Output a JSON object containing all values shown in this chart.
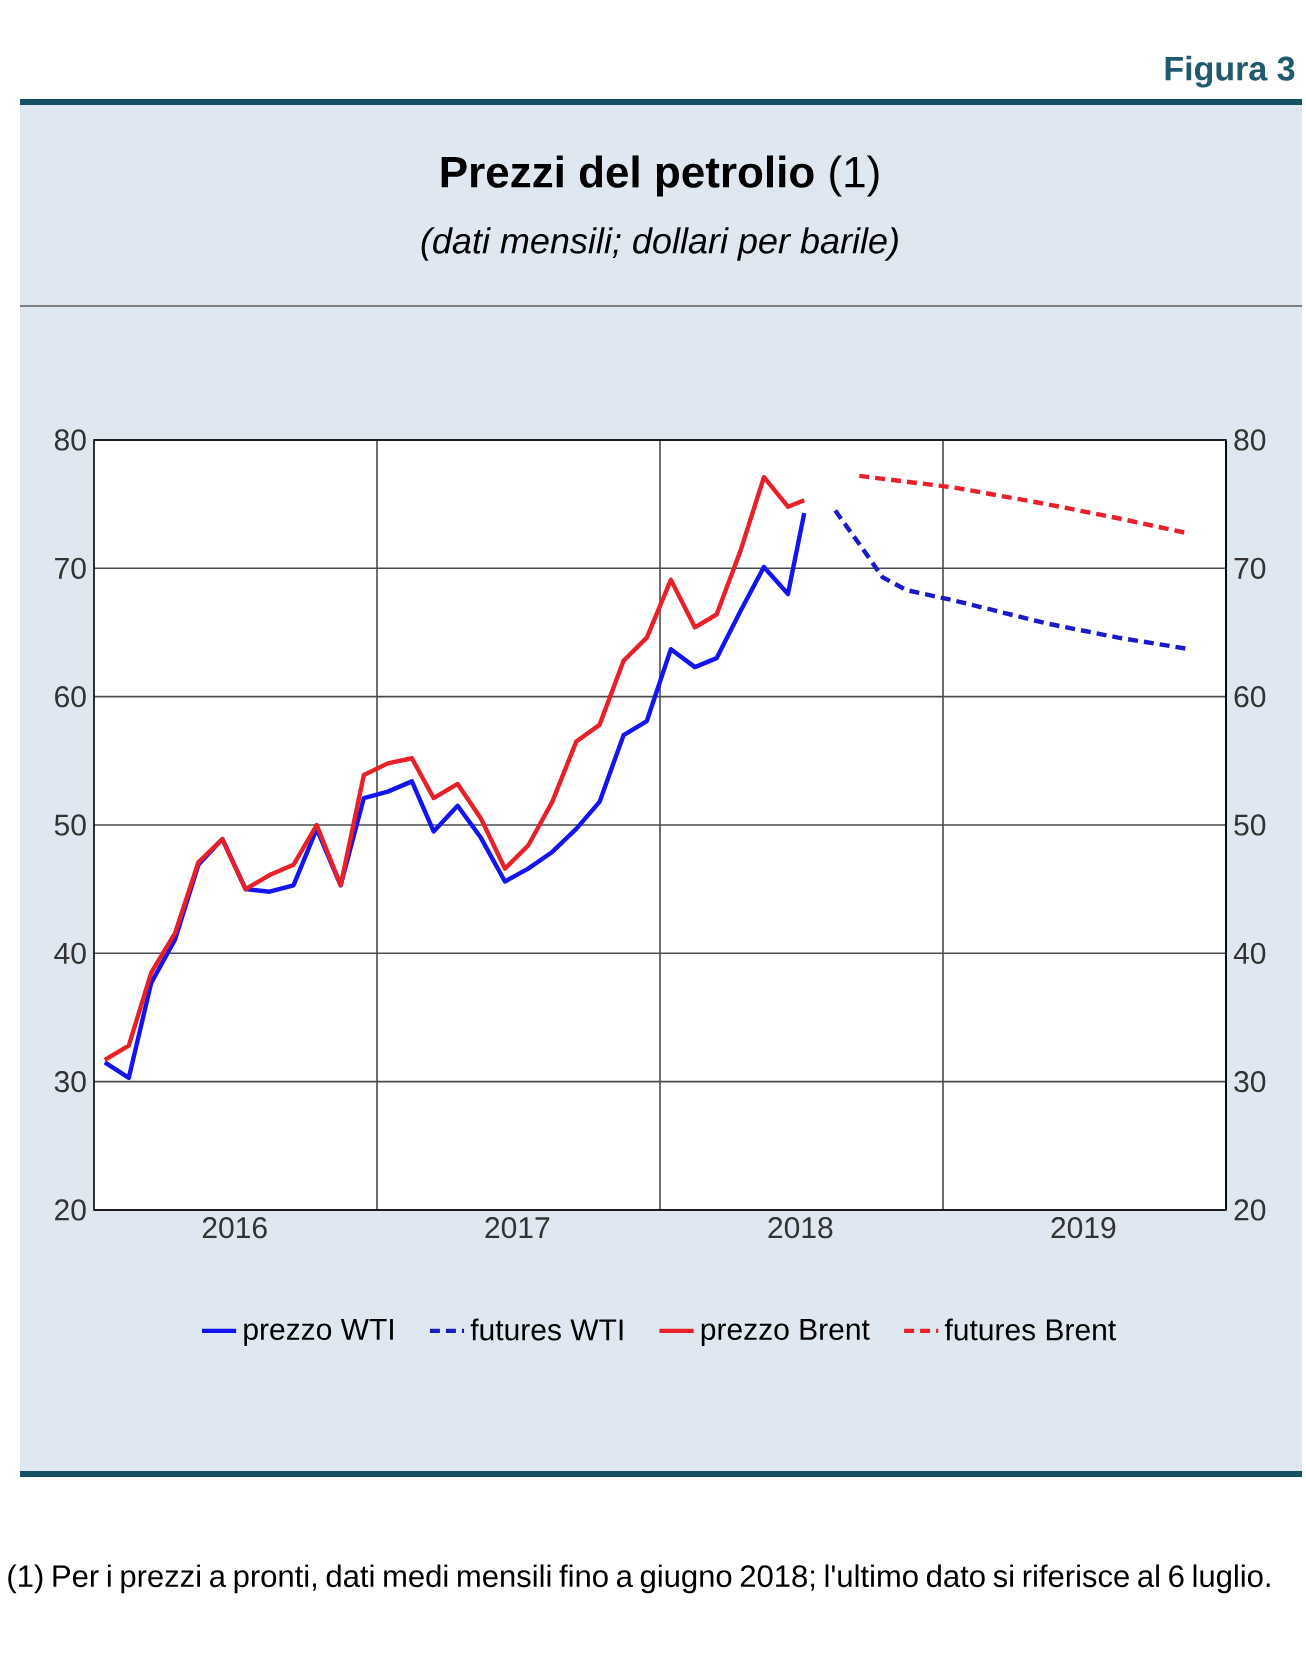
{
  "chart_data": {
    "type": "line",
    "title": "**Prezzi del petrolio** (1)",
    "subtitle": "(dati mensili; dollari per barile)",
    "annotations": [
      "Figura 3",
      "(1) Per i prezzi a pronti, dati medi mensili fino a giugno 2018; l'ultimo dato si riferisce al 6 luglio."
    ],
    "series": [
      {
        "name": "prezzo WTI",
        "color": "#1414f0",
        "line_style": "solid",
        "x": [
          "2016-01-15",
          "2016-02-15",
          "2016-03-15",
          "2016-04-15",
          "2016-05-15",
          "2016-06-15",
          "2016-07-15",
          "2016-08-15",
          "2016-09-15",
          "2016-10-15",
          "2016-11-15",
          "2016-12-15",
          "2017-01-15",
          "2017-02-15",
          "2017-03-15",
          "2017-04-15",
          "2017-05-15",
          "2017-06-15",
          "2017-07-15",
          "2017-08-15",
          "2017-09-15",
          "2017-10-15",
          "2017-11-15",
          "2017-12-15",
          "2018-01-15",
          "2018-02-15",
          "2018-03-15",
          "2018-04-15",
          "2018-05-15",
          "2018-06-15",
          "2018-07-06"
        ],
        "values": [
          31.5,
          30.3,
          37.7,
          41.1,
          46.9,
          48.9,
          45.0,
          44.8,
          45.3,
          49.7,
          45.3,
          52.1,
          52.6,
          53.4,
          49.5,
          51.5,
          49.0,
          45.6,
          46.6,
          47.9,
          49.7,
          51.8,
          57.0,
          58.1,
          63.7,
          62.3,
          63.0,
          66.7,
          70.1,
          68.0,
          74.3
        ]
      },
      {
        "name": "futures WTI",
        "color": "#1a1ac8",
        "line_style": "dashed",
        "x": [
          "2018-08-15",
          "2018-09-15",
          "2018-10-15",
          "2018-11-15",
          "2019-01-15",
          "2019-05-15",
          "2019-08-15",
          "2019-11-15"
        ],
        "values": [
          74.5,
          71.9,
          69.3,
          68.3,
          67.5,
          65.7,
          64.6,
          63.7
        ]
      },
      {
        "name": "prezzo Brent",
        "color": "#e8202a",
        "line_style": "solid",
        "x": [
          "2016-01-15",
          "2016-02-15",
          "2016-03-15",
          "2016-04-15",
          "2016-05-15",
          "2016-06-15",
          "2016-07-15",
          "2016-08-15",
          "2016-09-15",
          "2016-10-15",
          "2016-11-15",
          "2016-12-15",
          "2017-01-15",
          "2017-02-15",
          "2017-03-15",
          "2017-04-15",
          "2017-05-15",
          "2017-06-15",
          "2017-07-15",
          "2017-08-15",
          "2017-09-15",
          "2017-10-15",
          "2017-11-15",
          "2017-12-15",
          "2018-01-15",
          "2018-02-15",
          "2018-03-15",
          "2018-04-15",
          "2018-05-15",
          "2018-06-15",
          "2018-07-06"
        ],
        "values": [
          31.7,
          32.8,
          38.5,
          41.6,
          47.1,
          48.9,
          45.0,
          46.1,
          46.9,
          50.0,
          45.3,
          53.9,
          54.8,
          55.2,
          52.1,
          53.2,
          50.5,
          46.6,
          48.4,
          51.8,
          56.5,
          57.8,
          62.8,
          64.6,
          69.1,
          65.4,
          66.4,
          71.4,
          77.1,
          74.8,
          75.3
        ]
      },
      {
        "name": "futures Brent",
        "color": "#e8202a",
        "line_style": "dashed",
        "x": [
          "2018-09-15",
          "2019-01-15",
          "2019-05-15",
          "2019-08-15",
          "2019-11-15"
        ],
        "values": [
          77.2,
          76.3,
          75.0,
          73.9,
          72.7
        ]
      }
    ],
    "xlim": [
      "2016-01-01",
      "2020-01-01"
    ],
    "xticks": [
      {
        "value": "2016-07-01",
        "label": "2016"
      },
      {
        "value": "2017-01-01",
        "label": null
      },
      {
        "value": "2017-07-01",
        "label": "2017"
      },
      {
        "value": "2018-01-01",
        "label": null
      },
      {
        "value": "2018-07-01",
        "label": "2018"
      },
      {
        "value": "2019-01-01",
        "label": null
      },
      {
        "value": "2019-07-01",
        "label": "2019"
      }
    ],
    "ylim": [
      20,
      80
    ],
    "yticks": [
      20,
      30,
      40,
      50,
      60,
      70,
      80
    ],
    "y2lim": [
      20,
      80
    ],
    "y2ticks": [
      20,
      30,
      40,
      50,
      60,
      70,
      80
    ],
    "grid": true,
    "legend": "bottom",
    "marker": "none"
  }
}
